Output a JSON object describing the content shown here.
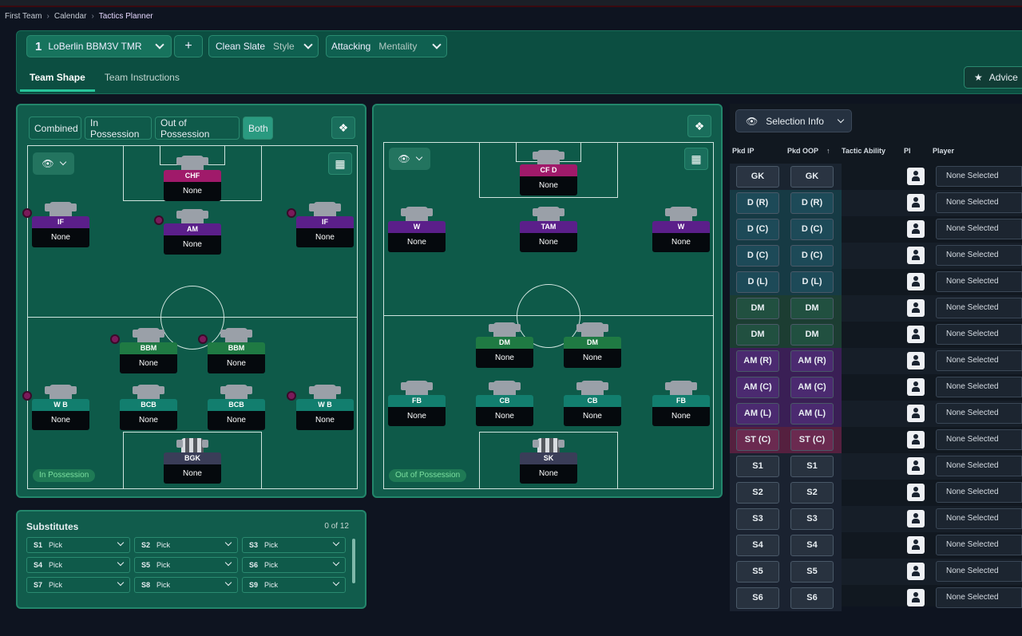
{
  "breadcrumb": [
    "First Team",
    "Calendar",
    "Tactics Planner"
  ],
  "tactic_bar": {
    "slot": "1",
    "tactic_name": "LoBerlin BBM3V TMR",
    "add": "+",
    "style_value": "Clean Slate",
    "style_label": "Style",
    "mentality_value": "Attacking",
    "mentality_label": "Mentality",
    "advice": "Advice"
  },
  "tabs": [
    "Team Shape",
    "Team Instructions"
  ],
  "phase_filter": [
    "Combined",
    "In Possession",
    "Out of Possession",
    "Both"
  ],
  "in_possession": {
    "label": "In Possession",
    "players": [
      {
        "role": "CHF",
        "name": "None",
        "color": "mag"
      },
      {
        "role": "IF",
        "name": "None",
        "color": "purple"
      },
      {
        "role": "AM",
        "name": "None",
        "color": "purple"
      },
      {
        "role": "IF",
        "name": "None",
        "color": "purple"
      },
      {
        "role": "BBM",
        "name": "None",
        "color": "green"
      },
      {
        "role": "BBM",
        "name": "None",
        "color": "green"
      },
      {
        "role": "W B",
        "name": "None",
        "color": "teal"
      },
      {
        "role": "BCB",
        "name": "None",
        "color": "teal"
      },
      {
        "role": "BCB",
        "name": "None",
        "color": "teal"
      },
      {
        "role": "W B",
        "name": "None",
        "color": "teal"
      },
      {
        "role": "BGK",
        "name": "None",
        "color": "gk"
      }
    ]
  },
  "out_of_possession": {
    "label": "Out of Possession",
    "players": [
      {
        "role": "CF D",
        "name": "None",
        "color": "mag"
      },
      {
        "role": "W",
        "name": "None",
        "color": "purple"
      },
      {
        "role": "TAM",
        "name": "None",
        "color": "purple"
      },
      {
        "role": "W",
        "name": "None",
        "color": "purple"
      },
      {
        "role": "DM",
        "name": "None",
        "color": "green"
      },
      {
        "role": "DM",
        "name": "None",
        "color": "green"
      },
      {
        "role": "FB",
        "name": "None",
        "color": "teal"
      },
      {
        "role": "CB",
        "name": "None",
        "color": "teal"
      },
      {
        "role": "CB",
        "name": "None",
        "color": "teal"
      },
      {
        "role": "FB",
        "name": "None",
        "color": "teal"
      },
      {
        "role": "SK",
        "name": "None",
        "color": "gk"
      }
    ]
  },
  "substitutes": {
    "title": "Substitutes",
    "count": "0 of 12",
    "slots": [
      {
        "id": "S1",
        "value": "Pick"
      },
      {
        "id": "S2",
        "value": "Pick"
      },
      {
        "id": "S3",
        "value": "Pick"
      },
      {
        "id": "S4",
        "value": "Pick"
      },
      {
        "id": "S5",
        "value": "Pick"
      },
      {
        "id": "S6",
        "value": "Pick"
      },
      {
        "id": "S7",
        "value": "Pick"
      },
      {
        "id": "S8",
        "value": "Pick"
      },
      {
        "id": "S9",
        "value": "Pick"
      }
    ]
  },
  "selection": {
    "button": "Selection Info",
    "columns": [
      "Pkd IP",
      "Pkd OOP",
      "Tactic Ability",
      "PI",
      "Player"
    ],
    "rows": [
      {
        "ip": "GK",
        "oop": "GK",
        "player": "None Selected",
        "zone": "gk"
      },
      {
        "ip": "D (R)",
        "oop": "D (R)",
        "player": "None Selected",
        "zone": "def"
      },
      {
        "ip": "D (C)",
        "oop": "D (C)",
        "player": "None Selected",
        "zone": "def"
      },
      {
        "ip": "D (C)",
        "oop": "D (C)",
        "player": "None Selected",
        "zone": "def"
      },
      {
        "ip": "D (L)",
        "oop": "D (L)",
        "player": "None Selected",
        "zone": "def"
      },
      {
        "ip": "DM",
        "oop": "DM",
        "player": "None Selected",
        "zone": "dm"
      },
      {
        "ip": "DM",
        "oop": "DM",
        "player": "None Selected",
        "zone": "dm"
      },
      {
        "ip": "AM (R)",
        "oop": "AM (R)",
        "player": "None Selected",
        "zone": "am"
      },
      {
        "ip": "AM (C)",
        "oop": "AM (C)",
        "player": "None Selected",
        "zone": "am"
      },
      {
        "ip": "AM (L)",
        "oop": "AM (L)",
        "player": "None Selected",
        "zone": "am"
      },
      {
        "ip": "ST (C)",
        "oop": "ST (C)",
        "player": "None Selected",
        "zone": "st"
      },
      {
        "ip": "S1",
        "oop": "S1",
        "player": "None Selected",
        "zone": "sub"
      },
      {
        "ip": "S2",
        "oop": "S2",
        "player": "None Selected",
        "zone": "sub"
      },
      {
        "ip": "S3",
        "oop": "S3",
        "player": "None Selected",
        "zone": "sub"
      },
      {
        "ip": "S4",
        "oop": "S4",
        "player": "None Selected",
        "zone": "sub"
      },
      {
        "ip": "S5",
        "oop": "S5",
        "player": "None Selected",
        "zone": "sub"
      },
      {
        "ip": "S6",
        "oop": "S6",
        "player": "None Selected",
        "zone": "sub"
      }
    ]
  },
  "colors": {
    "accent": "#28c49a",
    "panel": "#115c4c",
    "pitch": "#0e5a49"
  }
}
